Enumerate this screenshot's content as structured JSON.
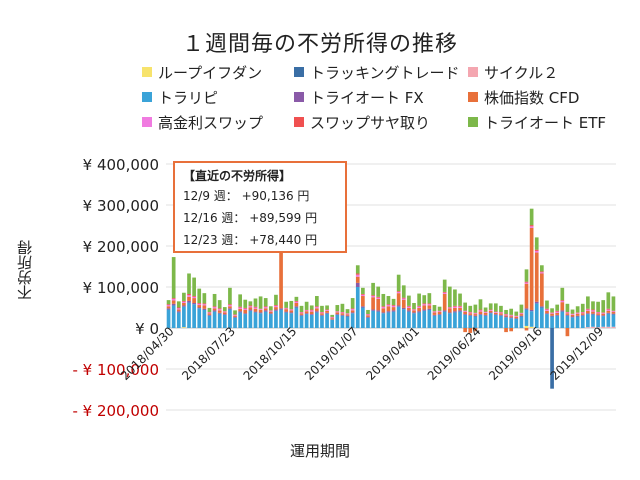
{
  "chart_data": {
    "type": "bar",
    "stacked": true,
    "title": "１週間毎の不労所得の推移",
    "xlabel": "運用期間",
    "ylabel": "不労所得",
    "ylim": [
      -200000,
      400000
    ],
    "yticks": [
      {
        "value": 400000,
        "label": "¥ 400,000",
        "negative": false
      },
      {
        "value": 300000,
        "label": "¥ 300,000",
        "negative": false
      },
      {
        "value": 200000,
        "label": "¥ 200,000",
        "negative": false
      },
      {
        "value": 100000,
        "label": "¥ 100,000",
        "negative": false
      },
      {
        "value": 0,
        "label": "¥ 0",
        "negative": false
      },
      {
        "value": -100000,
        "label": "- ¥ 100,000",
        "negative": true
      },
      {
        "value": -200000,
        "label": "- ¥ 200,000",
        "negative": true
      }
    ],
    "xticks": [
      {
        "index": 0,
        "label": "2018/04/30"
      },
      {
        "index": 12,
        "label": "2018/07/23"
      },
      {
        "index": 24,
        "label": "2018/10/15"
      },
      {
        "index": 36,
        "label": "2019/01/07"
      },
      {
        "index": 48,
        "label": "2019/04/01"
      },
      {
        "index": 60,
        "label": "2019/06/24"
      },
      {
        "index": 72,
        "label": "2019/09/16"
      },
      {
        "index": 84,
        "label": "2019/12/09"
      }
    ],
    "legend_position": "top",
    "series": [
      {
        "name": "ループイフダン",
        "color": "#f7e36c",
        "values": [
          0,
          0,
          0,
          2000,
          0,
          0,
          0,
          0,
          0,
          0,
          0,
          0,
          0,
          0,
          0,
          0,
          0,
          0,
          0,
          0,
          0,
          0,
          0,
          0,
          0,
          0,
          0,
          0,
          0,
          0,
          0,
          0,
          0,
          0,
          0,
          0,
          0,
          0,
          0,
          0,
          0,
          0,
          0,
          0,
          0,
          0,
          0,
          0,
          0,
          0,
          0,
          0,
          0,
          0,
          0,
          0,
          0,
          0,
          0,
          0,
          0,
          0,
          0,
          0,
          0,
          0,
          0,
          0,
          0,
          0,
          5000,
          3000,
          0,
          0,
          0,
          0,
          0,
          0,
          0,
          0,
          0,
          0,
          0,
          0,
          0,
          0,
          0,
          0
        ]
      },
      {
        "name": "トラッキングトレード",
        "color": "#3a6ea5",
        "values": [
          0,
          0,
          0,
          0,
          0,
          0,
          0,
          0,
          0,
          0,
          0,
          0,
          0,
          0,
          0,
          0,
          0,
          0,
          0,
          0,
          0,
          0,
          0,
          0,
          0,
          0,
          0,
          0,
          0,
          0,
          0,
          0,
          0,
          0,
          0,
          0,
          0,
          0,
          0,
          0,
          0,
          0,
          0,
          0,
          0,
          0,
          0,
          0,
          0,
          0,
          0,
          0,
          0,
          0,
          0,
          0,
          0,
          0,
          0,
          0,
          0,
          0,
          0,
          0,
          0,
          0,
          0,
          0,
          0,
          0,
          0,
          0,
          0,
          0,
          0,
          -148000,
          0,
          0,
          0,
          0,
          0,
          0,
          0,
          0,
          0,
          0,
          0,
          0
        ]
      },
      {
        "name": "サイクル２",
        "color": "#f4a6b0",
        "values": [
          0,
          0,
          0,
          0,
          0,
          0,
          0,
          0,
          0,
          0,
          0,
          0,
          0,
          0,
          0,
          0,
          0,
          0,
          0,
          0,
          0,
          0,
          0,
          0,
          0,
          0,
          0,
          0,
          0,
          0,
          0,
          0,
          0,
          0,
          0,
          0,
          0,
          0,
          0,
          0,
          0,
          0,
          0,
          0,
          0,
          0,
          0,
          0,
          0,
          0,
          0,
          0,
          0,
          0,
          0,
          0,
          0,
          0,
          0,
          0,
          0,
          0,
          0,
          0,
          0,
          0,
          0,
          0,
          0,
          0,
          0,
          0,
          0,
          0,
          0,
          0,
          0,
          0,
          0,
          0,
          0,
          0,
          2000,
          3000,
          2000,
          3000,
          3000,
          3000
        ]
      },
      {
        "name": "トラリピ",
        "color": "#3aa3d8",
        "values": [
          45000,
          55000,
          38000,
          50000,
          62000,
          58000,
          48000,
          44000,
          30000,
          40000,
          35000,
          32000,
          45000,
          25000,
          38000,
          34000,
          42000,
          38000,
          36000,
          40000,
          34000,
          42000,
          45000,
          38000,
          36000,
          50000,
          30000,
          34000,
          32000,
          38000,
          30000,
          35000,
          20000,
          32000,
          30000,
          28000,
          36000,
          100000,
          50000,
          25000,
          42000,
          40000,
          36000,
          38000,
          40000,
          52000,
          46000,
          40000,
          36000,
          38000,
          42000,
          44000,
          30000,
          32000,
          40000,
          36000,
          38000,
          40000,
          32000,
          30000,
          28000,
          32000,
          30000,
          36000,
          32000,
          30000,
          26000,
          24000,
          22000,
          28000,
          40000,
          38000,
          60000,
          50000,
          34000,
          28000,
          30000,
          40000,
          30000,
          26000,
          28000,
          30000,
          32000,
          30000,
          28000,
          26000,
          32000,
          30000
        ]
      },
      {
        "name": "トライオート FX",
        "color": "#8a5aa8",
        "values": [
          3000,
          4000,
          3000,
          3000,
          4000,
          3000,
          2000,
          3000,
          2000,
          3000,
          2000,
          2000,
          3000,
          2000,
          3000,
          2000,
          3000,
          2000,
          2000,
          3000,
          2000,
          3000,
          3000,
          2000,
          2000,
          3000,
          2000,
          2000,
          2000,
          3000,
          2000,
          2000,
          1000,
          2000,
          2000,
          2000,
          2000,
          10000,
          3000,
          2000,
          3000,
          3000,
          2000,
          3000,
          3000,
          3000,
          3000,
          3000,
          2000,
          3000,
          3000,
          3000,
          2000,
          2000,
          3000,
          2000,
          3000,
          3000,
          2000,
          2000,
          2000,
          2000,
          2000,
          2000,
          2000,
          2000,
          2000,
          2000,
          2000,
          2000,
          3000,
          3000,
          4000,
          3000,
          2000,
          2000,
          2000,
          3000,
          2000,
          2000,
          2000,
          2000,
          2000,
          2000,
          2000,
          2000,
          2000,
          2000
        ]
      },
      {
        "name": "株価指数 CFD",
        "color": "#e8703a",
        "values": [
          5000,
          8000,
          4000,
          6000,
          10000,
          12000,
          6000,
          8000,
          4000,
          5000,
          6000,
          4000,
          5000,
          3000,
          6000,
          8000,
          5000,
          7000,
          6000,
          5000,
          4000,
          6000,
          140000,
          6000,
          5000,
          8000,
          4000,
          5000,
          6000,
          7000,
          4000,
          5000,
          3000,
          4000,
          4000,
          3000,
          5000,
          15000,
          25000,
          4000,
          30000,
          28000,
          10000,
          12000,
          8000,
          30000,
          20000,
          6000,
          5000,
          8000,
          10000,
          8000,
          6000,
          5000,
          40000,
          10000,
          8000,
          6000,
          5000,
          4000,
          4000,
          6000,
          5000,
          4000,
          3000,
          4000,
          3000,
          3000,
          3000,
          4000,
          60000,
          200000,
          120000,
          80000,
          6000,
          5000,
          5000,
          20000,
          4000,
          4000,
          5000,
          4000,
          6000,
          5000,
          4000,
          4000,
          5000,
          4000
        ]
      },
      {
        "name": "高金利スワップ",
        "color": "#f07be0",
        "values": [
          3000,
          4000,
          3000,
          3000,
          4000,
          3000,
          3000,
          3000,
          2000,
          3000,
          3000,
          2000,
          3000,
          2000,
          3000,
          3000,
          3000,
          3000,
          2000,
          3000,
          2000,
          3000,
          3000,
          2000,
          2000,
          3000,
          2000,
          2000,
          3000,
          3000,
          2000,
          2000,
          2000,
          2000,
          2000,
          2000,
          3000,
          5000,
          3000,
          2000,
          3000,
          3000,
          3000,
          3000,
          3000,
          3000,
          3000,
          3000,
          2000,
          3000,
          3000,
          3000,
          2000,
          2000,
          3000,
          2000,
          3000,
          3000,
          2000,
          2000,
          2000,
          3000,
          2000,
          2000,
          2000,
          2000,
          2000,
          2000,
          2000,
          2000,
          3000,
          4000,
          4000,
          3000,
          3000,
          2000,
          3000,
          3000,
          2000,
          2000,
          2000,
          2000,
          3000,
          3000,
          2000,
          2000,
          3000,
          2000
        ]
      },
      {
        "name": "スワップサヤ取り",
        "color": "#f05050",
        "values": [
          2000,
          2000,
          2000,
          2000,
          3000,
          2000,
          2000,
          2000,
          1000,
          2000,
          2000,
          1000,
          2000,
          1000,
          2000,
          2000,
          2000,
          2000,
          1000,
          2000,
          1000,
          2000,
          2000,
          1000,
          1000,
          2000,
          1000,
          1000,
          2000,
          2000,
          1000,
          1000,
          1000,
          1000,
          1000,
          1000,
          2000,
          3000,
          2000,
          1000,
          2000,
          2000,
          2000,
          2000,
          2000,
          2000,
          2000,
          2000,
          1000,
          2000,
          2000,
          2000,
          1000,
          1000,
          2000,
          1000,
          2000,
          2000,
          1000,
          1000,
          1000,
          2000,
          1000,
          1000,
          1000,
          1000,
          1000,
          1000,
          1000,
          1000,
          2000,
          3000,
          3000,
          2000,
          2000,
          1000,
          2000,
          2000,
          1000,
          1000,
          1000,
          1000,
          2000,
          2000,
          1000,
          1000,
          2000,
          1000
        ]
      },
      {
        "name": "トライオート ETF",
        "color": "#7db84a",
        "values": [
          10000,
          100000,
          15000,
          20000,
          50000,
          45000,
          35000,
          25000,
          10000,
          30000,
          20000,
          10000,
          40000,
          10000,
          30000,
          20000,
          10000,
          20000,
          30000,
          20000,
          10000,
          25000,
          10000,
          15000,
          20000,
          10000,
          15000,
          20000,
          10000,
          25000,
          15000,
          10000,
          5000,
          15000,
          20000,
          10000,
          25000,
          20000,
          15000,
          10000,
          30000,
          25000,
          30000,
          20000,
          15000,
          40000,
          30000,
          25000,
          15000,
          30000,
          20000,
          25000,
          15000,
          10000,
          30000,
          50000,
          40000,
          30000,
          20000,
          15000,
          20000,
          25000,
          10000,
          15000,
          20000,
          15000,
          10000,
          15000,
          10000,
          20000,
          30000,
          40000,
          30000,
          15000,
          20000,
          10000,
          15000,
          30000,
          20000,
          10000,
          15000,
          20000,
          30000,
          20000,
          25000,
          30000,
          40000,
          35000
        ]
      }
    ],
    "negatives": [
      {
        "index": 58,
        "value": -10000
      },
      {
        "index": 59,
        "value": -12000
      },
      {
        "index": 60,
        "value": -8000
      },
      {
        "index": 66,
        "value": -10000
      },
      {
        "index": 67,
        "value": -8000
      },
      {
        "index": 70,
        "value": -6000
      },
      {
        "index": 78,
        "value": -20000
      }
    ]
  },
  "callout": {
    "heading": "【直近の不労所得】",
    "lines": [
      "12/9 週： +90,136 円",
      "12/16 週： +89,599 円",
      "12/23 週： +78,440 円"
    ]
  }
}
